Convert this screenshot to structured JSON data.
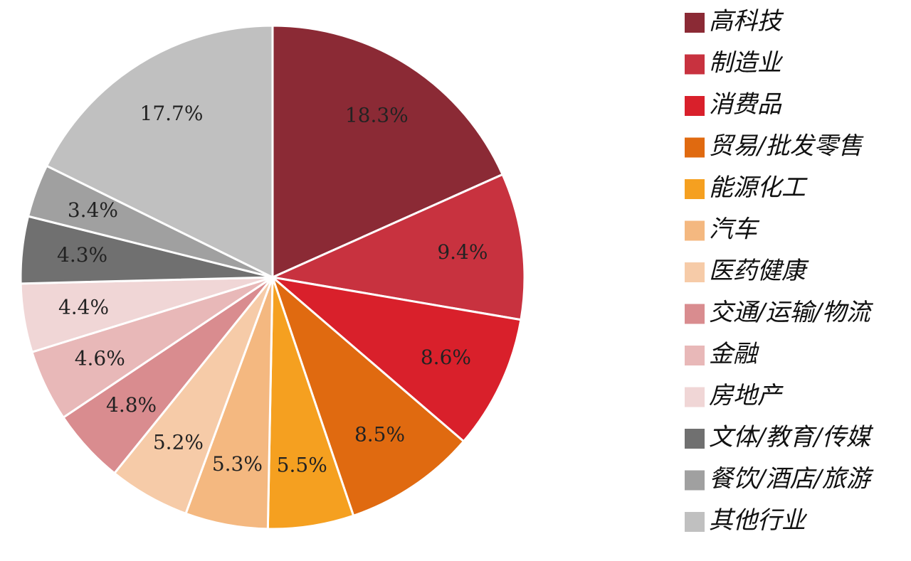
{
  "chart_data": {
    "type": "pie",
    "categories": [
      "高科技",
      "制造业",
      "消费品",
      "贸易/批发零售",
      "能源化工",
      "汽车",
      "医药健康",
      "交通/运输/物流",
      "金融",
      "房地产",
      "文体/教育/传媒",
      "餐饮/酒店/旅游",
      "其他行业"
    ],
    "values": [
      18.3,
      9.4,
      8.6,
      8.5,
      5.5,
      5.3,
      5.2,
      4.8,
      4.6,
      4.4,
      4.3,
      3.4,
      17.7
    ],
    "value_labels": [
      "18.3%",
      "9.4%",
      "8.6%",
      "8.5%",
      "5.5%",
      "5.3%",
      "5.2%",
      "4.8%",
      "4.6%",
      "4.4%",
      "4.3%",
      "3.4%",
      "17.7%"
    ],
    "colors": [
      "#8b2a35",
      "#c8323f",
      "#d9202b",
      "#e06a10",
      "#f5a020",
      "#f4b880",
      "#f6cba8",
      "#d98c8f",
      "#e8b8b8",
      "#f0d6d6",
      "#707070",
      "#a0a0a0",
      "#c0c0c0"
    ],
    "legend": "right"
  }
}
